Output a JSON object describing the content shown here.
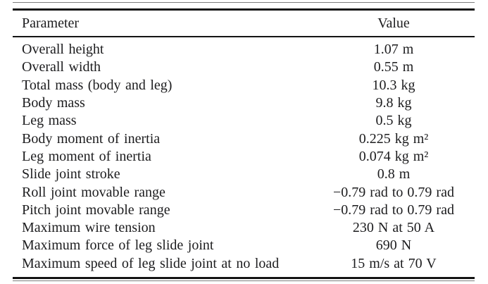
{
  "table": {
    "columns": [
      "Parameter",
      "Value"
    ],
    "rows": [
      {
        "parameter": "Overall height",
        "value": "1.07 m"
      },
      {
        "parameter": "Overall width",
        "value": "0.55 m"
      },
      {
        "parameter": "Total mass (body and leg)",
        "value": "10.3 kg"
      },
      {
        "parameter": "Body mass",
        "value": "9.8 kg"
      },
      {
        "parameter": "Leg mass",
        "value": "0.5 kg"
      },
      {
        "parameter": "Body moment of inertia",
        "value": "0.225 kg m²"
      },
      {
        "parameter": "Leg moment of inertia",
        "value": "0.074 kg m²"
      },
      {
        "parameter": "Slide joint stroke",
        "value": "0.8 m"
      },
      {
        "parameter": "Roll joint movable range",
        "value": "−0.79 rad to 0.79 rad"
      },
      {
        "parameter": "Pitch joint movable range",
        "value": "−0.79 rad to 0.79 rad"
      },
      {
        "parameter": "Maximum wire tension",
        "value": "230 N at 50 A"
      },
      {
        "parameter": "Maximum force of leg slide joint",
        "value": "690 N"
      },
      {
        "parameter": "Maximum speed of leg slide joint at no load",
        "value": "15 m/s at 70 V"
      }
    ],
    "colors": {
      "text": "#1c1c1e",
      "rule": "#141414",
      "thin_rule": "#7d7d7d",
      "background": "#ffffff"
    }
  }
}
